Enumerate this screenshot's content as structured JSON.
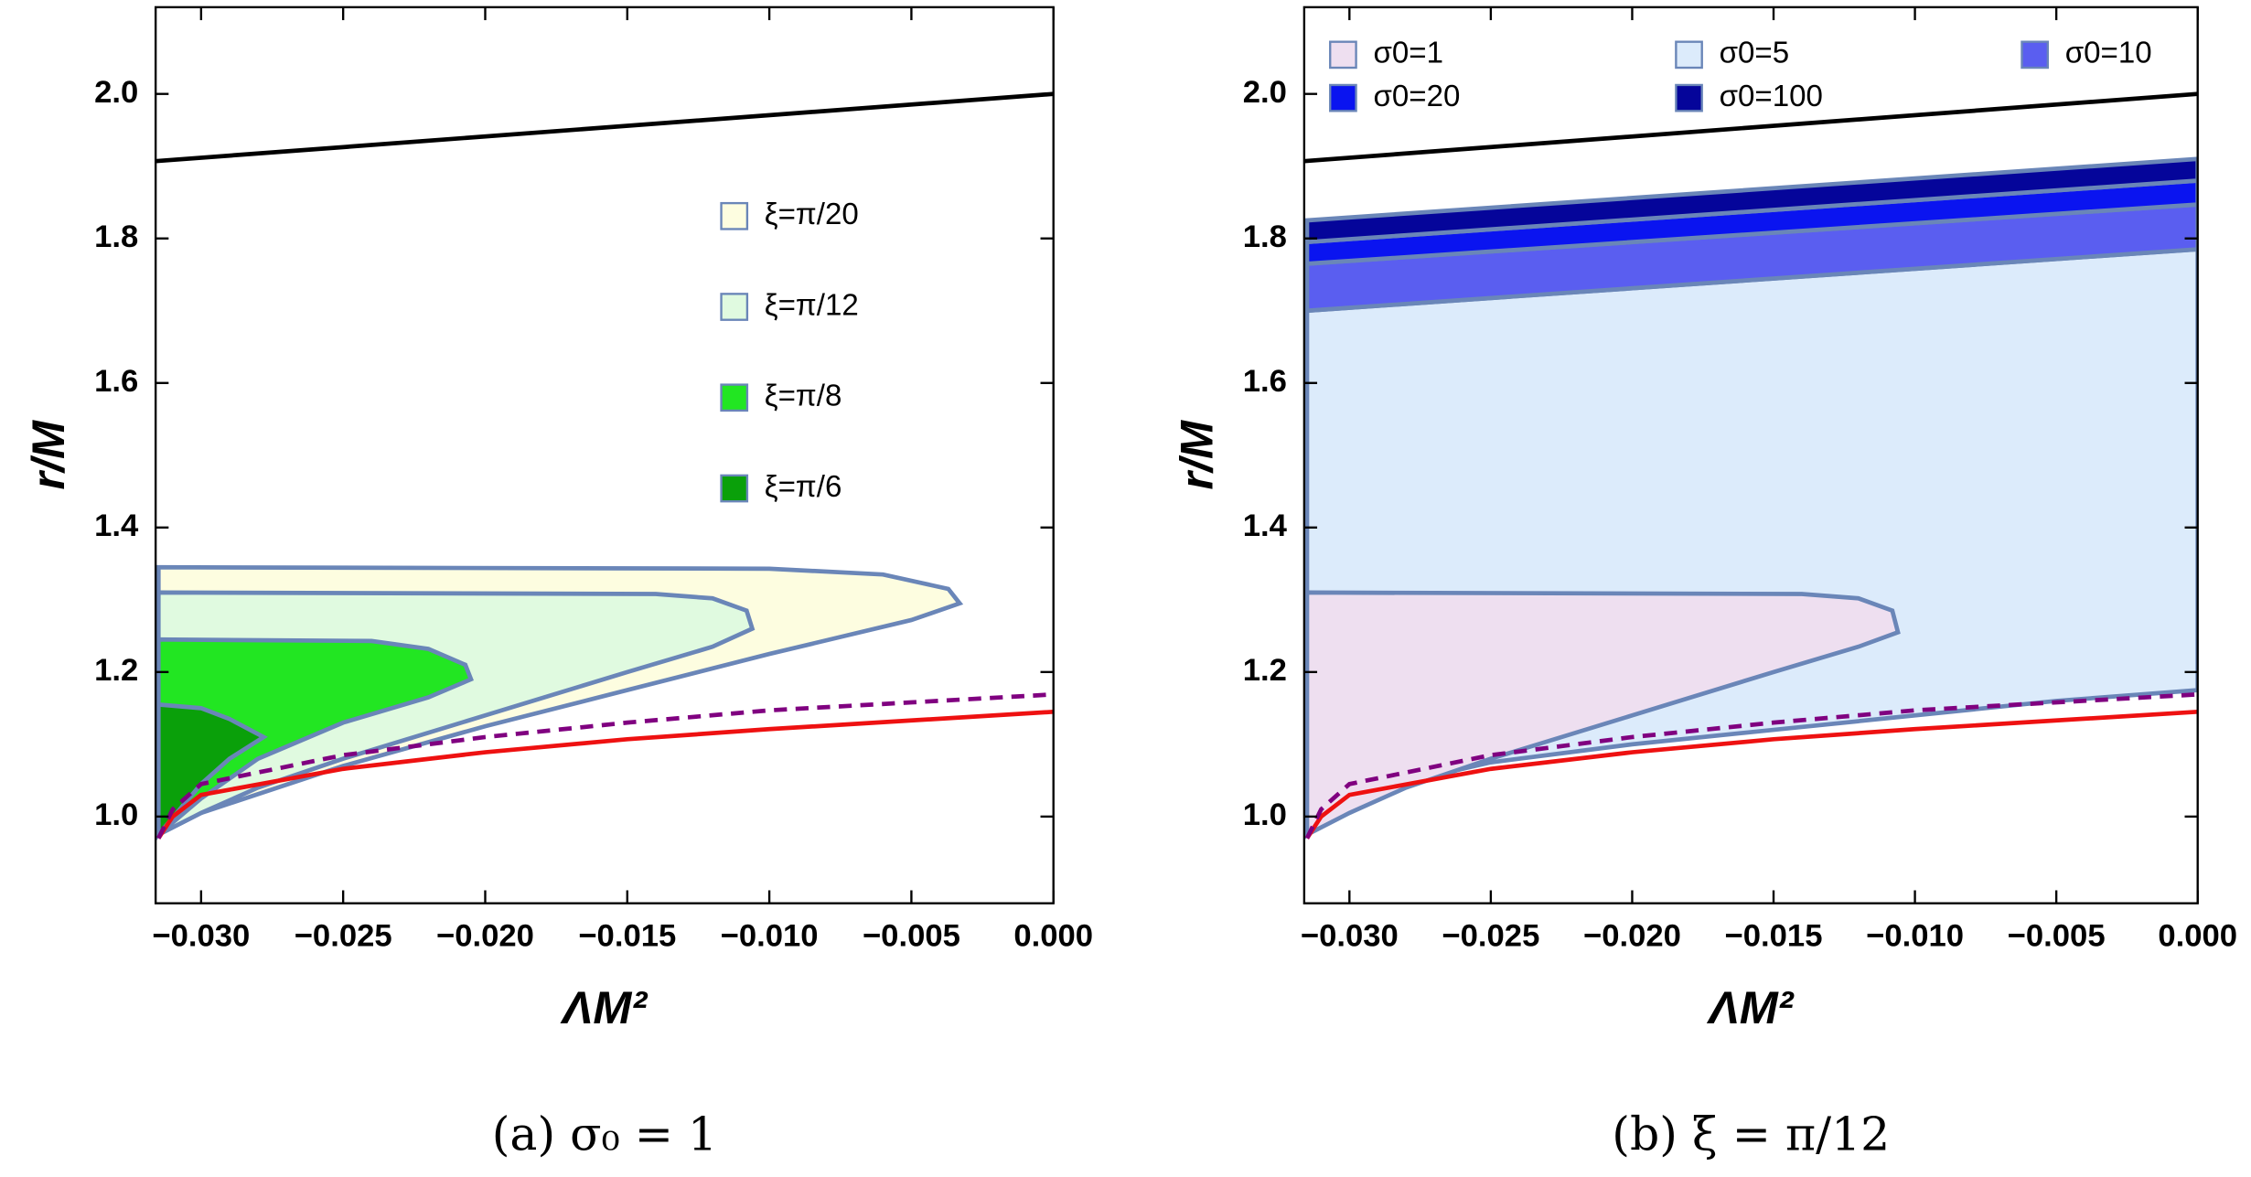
{
  "chart_data": [
    {
      "type": "region",
      "caption": "(a) σ₀ = 1",
      "xlabel": "ΛM²",
      "ylabel": "r/M",
      "xlim": [
        -0.0316,
        0
      ],
      "ylim": [
        0.88,
        2.12
      ],
      "xticks": [
        {
          "value": -0.03,
          "label": "−0.030"
        },
        {
          "value": -0.025,
          "label": "−0.025"
        },
        {
          "value": -0.02,
          "label": "−0.020"
        },
        {
          "value": -0.015,
          "label": "−0.015"
        },
        {
          "value": -0.01,
          "label": "−0.010"
        },
        {
          "value": -0.005,
          "label": "−0.005"
        },
        {
          "value": 0,
          "label": "0.000"
        }
      ],
      "yticks": [
        {
          "value": 1,
          "label": "1.0"
        },
        1.2,
        1.4,
        1.6,
        1.8,
        {
          "value": 2,
          "label": "2.0"
        }
      ],
      "legend": "right",
      "outline": "#6a86b8",
      "series": [
        {
          "name": "ξ=π/20",
          "color": "#fdfde0",
          "x": [
            -0.0315,
            -0.01,
            -0.006,
            -0.0037,
            -0.0033,
            -0.005,
            -0.01,
            -0.015,
            -0.02,
            -0.025,
            -0.03,
            -0.0315
          ],
          "y": [
            1.345,
            1.343,
            1.335,
            1.315,
            1.295,
            1.272,
            1.225,
            1.175,
            1.125,
            1.07,
            1.005,
            0.975
          ]
        },
        {
          "name": "ξ=π/12",
          "color": "#e0fae0",
          "x": [
            -0.0315,
            -0.014,
            -0.012,
            -0.0108,
            -0.0106,
            -0.012,
            -0.015,
            -0.02,
            -0.025,
            -0.028,
            -0.03,
            -0.0315
          ],
          "y": [
            1.31,
            1.308,
            1.302,
            1.285,
            1.26,
            1.235,
            1.2,
            1.14,
            1.08,
            1.04,
            1.005,
            0.975
          ]
        },
        {
          "name": "ξ=π/8",
          "color": "#22e622",
          "x": [
            -0.0315,
            -0.024,
            -0.022,
            -0.0207,
            -0.0205,
            -0.022,
            -0.025,
            -0.028,
            -0.03,
            -0.0315
          ],
          "y": [
            1.245,
            1.243,
            1.232,
            1.21,
            1.19,
            1.165,
            1.13,
            1.08,
            1.025,
            0.975
          ]
        },
        {
          "name": "ξ=π/6",
          "color": "#0aa00a",
          "x": [
            -0.0315,
            -0.03,
            -0.029,
            -0.0278,
            -0.029,
            -0.03,
            -0.0315
          ],
          "y": [
            1.155,
            1.15,
            1.135,
            1.11,
            1.08,
            1.045,
            0.975
          ]
        }
      ],
      "lines": [
        {
          "color": "#000000",
          "x": [
            -0.0316,
            0
          ],
          "values": [
            1.907,
            2.0
          ]
        },
        {
          "color": "#ee1111",
          "x": [
            -0.0315,
            -0.031,
            -0.03,
            -0.025,
            -0.02,
            -0.015,
            -0.01,
            -0.005,
            0
          ],
          "values": [
            0.97,
            1.0,
            1.03,
            1.066,
            1.089,
            1.107,
            1.121,
            1.133,
            1.145
          ]
        },
        {
          "color": "#800080",
          "dashed": true,
          "x": [
            -0.0315,
            -0.031,
            -0.03,
            -0.025,
            -0.02,
            -0.015,
            -0.01,
            -0.005,
            0
          ],
          "values": [
            0.97,
            1.01,
            1.045,
            1.085,
            1.11,
            1.13,
            1.147,
            1.158,
            1.169
          ]
        }
      ]
    },
    {
      "type": "region",
      "caption": "(b) ξ = π/12",
      "xlabel": "ΛM²",
      "ylabel": "r/M",
      "xlim": [
        -0.0316,
        0
      ],
      "ylim": [
        0.88,
        2.12
      ],
      "xticks": [
        {
          "value": -0.03,
          "label": "−0.030"
        },
        {
          "value": -0.025,
          "label": "−0.025"
        },
        {
          "value": -0.02,
          "label": "−0.020"
        },
        {
          "value": -0.015,
          "label": "−0.015"
        },
        {
          "value": -0.01,
          "label": "−0.010"
        },
        {
          "value": -0.005,
          "label": "−0.005"
        },
        {
          "value": 0,
          "label": "0.000"
        }
      ],
      "yticks": [
        {
          "value": 1,
          "label": "1.0"
        },
        1.2,
        1.4,
        1.6,
        1.8,
        {
          "value": 2,
          "label": "2.0"
        }
      ],
      "legend": "top",
      "outline": "#6a86b8",
      "series": [
        {
          "name": "σ0=1",
          "color": "#eedff0",
          "x": [
            -0.0315,
            -0.014,
            -0.012,
            -0.0108,
            -0.0106,
            -0.012,
            -0.015,
            -0.02,
            -0.025,
            -0.028,
            -0.03,
            -0.0315
          ],
          "y": [
            1.31,
            1.308,
            1.302,
            1.285,
            1.255,
            1.235,
            1.2,
            1.14,
            1.08,
            1.04,
            1.005,
            0.975
          ]
        },
        {
          "name": "σ0=5",
          "color": "#dcebfb",
          "x": [
            -0.0315,
            0,
            0,
            -0.005,
            -0.01,
            -0.015,
            -0.02,
            -0.025,
            -0.03,
            -0.0315
          ],
          "y": [
            1.7,
            1.785,
            1.175,
            1.16,
            1.14,
            1.12,
            1.1,
            1.075,
            1.03,
            0.975
          ]
        },
        {
          "name": "σ0=10",
          "color": "#5a5ef0",
          "x": [
            -0.0315,
            0,
            0,
            -0.0315
          ],
          "y": [
            1.7,
            1.785,
            1.847,
            1.765
          ]
        },
        {
          "name": "σ0=20",
          "color": "#0a14f0",
          "x": [
            -0.0315,
            0,
            0,
            -0.0315
          ],
          "y": [
            1.765,
            1.847,
            1.88,
            1.795
          ]
        },
        {
          "name": "σ0=100",
          "color": "#05059a",
          "x": [
            -0.0315,
            0,
            0,
            -0.0315
          ],
          "y": [
            1.795,
            1.88,
            1.91,
            1.825
          ]
        }
      ],
      "lines": [
        {
          "color": "#000000",
          "x": [
            -0.0316,
            0
          ],
          "values": [
            1.907,
            2.0
          ]
        },
        {
          "color": "#ee1111",
          "x": [
            -0.0315,
            -0.031,
            -0.03,
            -0.025,
            -0.02,
            -0.015,
            -0.01,
            -0.005,
            0
          ],
          "values": [
            0.97,
            1.0,
            1.03,
            1.066,
            1.089,
            1.107,
            1.121,
            1.133,
            1.145
          ]
        },
        {
          "color": "#800080",
          "dashed": true,
          "x": [
            -0.0315,
            -0.031,
            -0.03,
            -0.025,
            -0.02,
            -0.015,
            -0.01,
            -0.005,
            0
          ],
          "values": [
            0.97,
            1.01,
            1.045,
            1.085,
            1.11,
            1.13,
            1.147,
            1.158,
            1.169
          ]
        }
      ]
    }
  ]
}
